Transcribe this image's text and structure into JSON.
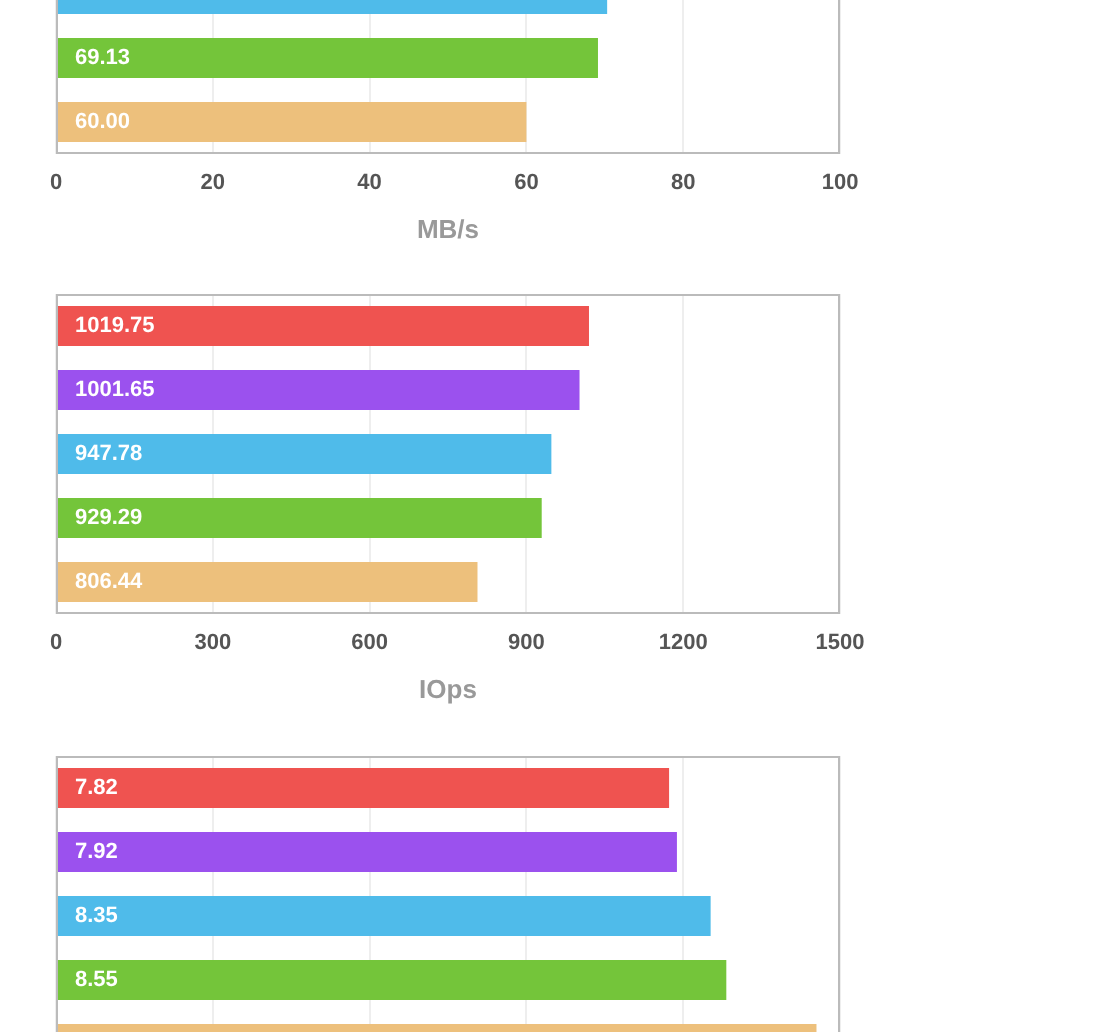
{
  "chart_data": [
    {
      "type": "bar",
      "orientation": "horizontal",
      "categories": [
        null,
        null,
        null
      ],
      "values": [
        70.3,
        69.13,
        60.0
      ],
      "colors": [
        "#4fbbea",
        "#74c53a",
        "#edc07c"
      ],
      "value_labels": [
        null,
        "69.13",
        "60.00"
      ],
      "xlim": [
        0,
        100
      ],
      "xticks": [
        0,
        20,
        40,
        60,
        80,
        100
      ],
      "xlabel": "MB/s",
      "grid": "x"
    },
    {
      "type": "bar",
      "orientation": "horizontal",
      "categories": [
        null,
        null,
        null,
        null,
        null
      ],
      "values": [
        1019.75,
        1001.65,
        947.78,
        929.29,
        806.44
      ],
      "colors": [
        "#ef5350",
        "#9b51ee",
        "#4fbbea",
        "#74c53a",
        "#edc07c"
      ],
      "data_labels": true,
      "xlim": [
        0,
        1500
      ],
      "xticks": [
        0,
        300,
        600,
        900,
        1200,
        1500
      ],
      "xlabel": "IOps",
      "grid": "x"
    },
    {
      "type": "bar",
      "orientation": "horizontal",
      "categories": [
        null,
        null,
        null,
        null,
        null
      ],
      "values": [
        7.82,
        7.92,
        8.35,
        8.55,
        9.7
      ],
      "colors": [
        "#ef5350",
        "#9b51ee",
        "#4fbbea",
        "#74c53a",
        "#edc07c"
      ],
      "value_labels": [
        "7.82",
        "7.92",
        "8.35",
        "8.55",
        null
      ],
      "xlim": [
        0,
        10
      ],
      "xticks": [
        {
          "value": 0,
          "label": null
        },
        {
          "value": 2,
          "label": null
        },
        {
          "value": 4,
          "label": null
        },
        {
          "value": 6,
          "label": null
        },
        {
          "value": 8,
          "label": null
        },
        {
          "value": 10,
          "label": null
        }
      ],
      "grid": "x"
    }
  ]
}
